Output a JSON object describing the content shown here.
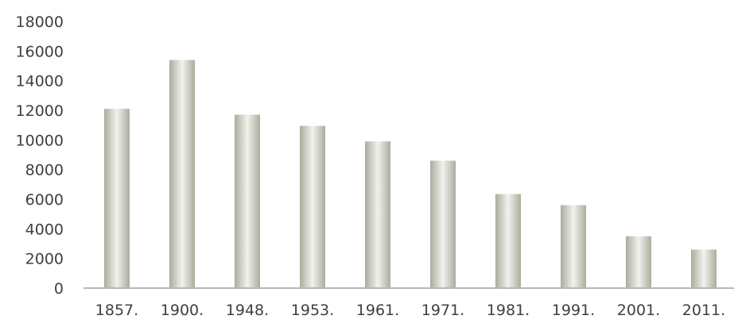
{
  "chart_data": {
    "type": "bar",
    "title": "",
    "xlabel": "",
    "ylabel": "",
    "categories": [
      "1857.",
      "1900.",
      "1948.",
      "1953.",
      "1961.",
      "1971.",
      "1981.",
      "1991.",
      "2001.",
      "2011.",
      ""
    ],
    "values": [
      12100,
      15400,
      11700,
      10950,
      9900,
      8600,
      6350,
      5600,
      3500,
      2600,
      null
    ],
    "ylim": [
      0,
      18000
    ],
    "yticks": [
      0,
      2000,
      4000,
      6000,
      8000,
      10000,
      12000,
      14000,
      16000,
      18000
    ],
    "grid": false,
    "legend": "none",
    "bar_color_edge": "#a9ad9c",
    "bar_color_center": "#f2f2ee",
    "axis_color": "#b8b8b8"
  }
}
